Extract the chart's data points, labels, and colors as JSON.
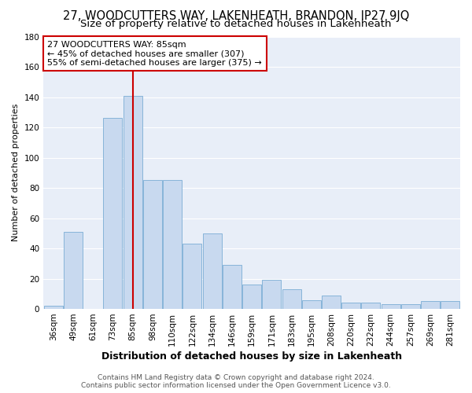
{
  "title": "27, WOODCUTTERS WAY, LAKENHEATH, BRANDON, IP27 9JQ",
  "subtitle": "Size of property relative to detached houses in Lakenheath",
  "xlabel": "Distribution of detached houses by size in Lakenheath",
  "ylabel": "Number of detached properties",
  "categories": [
    "36sqm",
    "49sqm",
    "61sqm",
    "73sqm",
    "85sqm",
    "98sqm",
    "110sqm",
    "122sqm",
    "134sqm",
    "146sqm",
    "159sqm",
    "171sqm",
    "183sqm",
    "195sqm",
    "208sqm",
    "220sqm",
    "232sqm",
    "244sqm",
    "257sqm",
    "269sqm",
    "281sqm"
  ],
  "values": [
    2,
    51,
    0,
    126,
    141,
    85,
    85,
    43,
    50,
    29,
    16,
    19,
    13,
    6,
    9,
    4,
    4,
    3,
    3,
    5,
    5
  ],
  "bar_color": "#c8d9ef",
  "bar_edge_color": "#7aadd4",
  "vline_x_idx": 4,
  "vline_color": "#cc0000",
  "annotation_line1": "27 WOODCUTTERS WAY: 85sqm",
  "annotation_line2": "← 45% of detached houses are smaller (307)",
  "annotation_line3": "55% of semi-detached houses are larger (375) →",
  "annotation_box_color": "#ffffff",
  "annotation_box_edge_color": "#cc0000",
  "ylim": [
    0,
    180
  ],
  "yticks": [
    0,
    20,
    40,
    60,
    80,
    100,
    120,
    140,
    160,
    180
  ],
  "fig_bg_color": "#ffffff",
  "plot_bg_color": "#e8eef8",
  "grid_color": "#ffffff",
  "footer_line1": "Contains HM Land Registry data © Crown copyright and database right 2024.",
  "footer_line2": "Contains public sector information licensed under the Open Government Licence v3.0.",
  "title_fontsize": 10.5,
  "subtitle_fontsize": 9.5,
  "xlabel_fontsize": 9,
  "ylabel_fontsize": 8,
  "tick_fontsize": 7.5,
  "annotation_fontsize": 8,
  "footer_fontsize": 6.5
}
